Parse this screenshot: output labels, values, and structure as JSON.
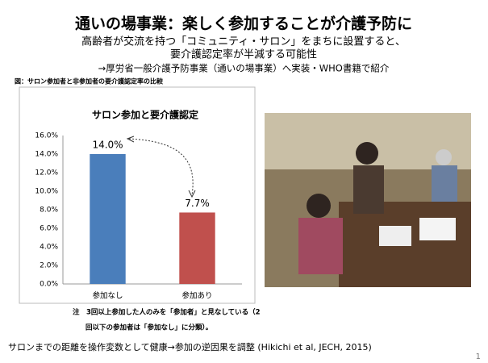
{
  "title": "通いの場事業：楽しく参加することが介護予防に",
  "subtitle": [
    "高齢者が交流を持つ「コミュニティ・サロン」をまちに設置すると、",
    "要介護認定率が半減する可能性",
    "→厚労省一般介護予防事業（通いの場事業）へ実装・WHO書籍で紹介"
  ],
  "figure_caption": "図：サロン参加者と非参加者の要介護認定率の比較",
  "chart_data": {
    "type": "bar",
    "title": "サロン参加と要介護認定",
    "categories": [
      "参加なし",
      "参加あり"
    ],
    "values": [
      14.0,
      7.7
    ],
    "value_labels": [
      "14.0%",
      "7.7%"
    ],
    "colors": [
      "#4a7ebb",
      "#c0504d"
    ],
    "ylim": [
      0,
      16
    ],
    "yticks": [
      {
        "value": 0,
        "label": "0.0%"
      },
      {
        "value": 2,
        "label": "2.0%"
      },
      {
        "value": 4,
        "label": "4.0%"
      },
      {
        "value": 6,
        "label": "6.0%"
      },
      {
        "value": 8,
        "label": "8.0%"
      },
      {
        "value": 10,
        "label": "10.0%"
      },
      {
        "value": 12,
        "label": "12.0%"
      },
      {
        "value": 14,
        "label": "14.0%"
      },
      {
        "value": 16,
        "label": "16.0%"
      }
    ],
    "grid": false
  },
  "note": [
    "注　3回以上参加した人のみを「参加者」と見なしている（2",
    "回以下の参加者は「参加なし」に分類）。"
  ],
  "footer": "サロンまでの距離を操作変数として健康→参加の逆因果を調整 (Hikichi et al, JECH, 2015)",
  "page_number": "1"
}
